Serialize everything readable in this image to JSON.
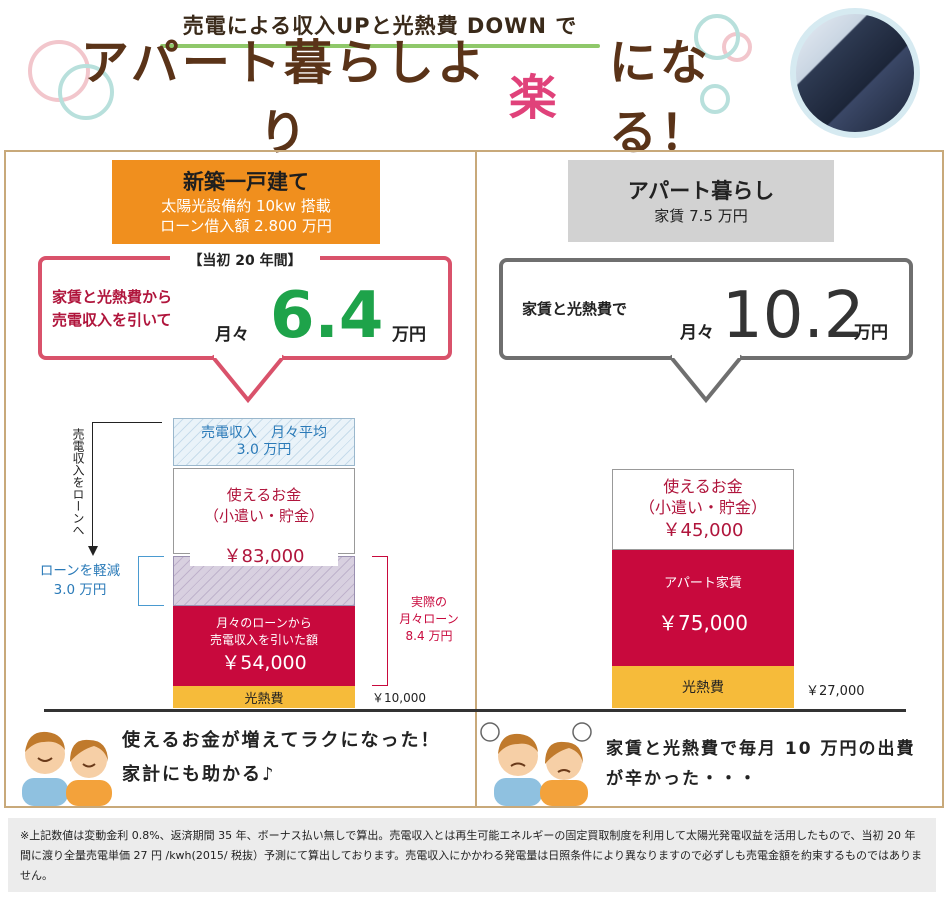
{
  "header": {
    "sub": "売電による収入UPと光熱費 DOWN で",
    "main_before": "アパート暮らしより",
    "main_highlight": "楽",
    "main_after": "になる！"
  },
  "left": {
    "title": "新築一戸建て",
    "spec1": "太陽光設備約 10kw 搭載",
    "spec2": "ローン借入額 2.800 万円",
    "period": "【当初 20 年間】",
    "desc1": "家賃と光熱費から",
    "desc2": "売電収入を引いて",
    "monthly": "月々",
    "amount": "6.4",
    "unit": "万円",
    "solar1": "売電収入　月々平均",
    "solar2": "3.0 万円",
    "usable1": "使えるお金",
    "usable2": "（小遣い・貯金）",
    "usable_amount": "￥83,000",
    "loan1": "月々のローンから",
    "loan2": "売電収入を引いた額",
    "loan_amount": "￥54,000",
    "utility": "光熱費",
    "utility_amount": "￥10,000",
    "arrow_text": "売電収入をローンへ",
    "reduce1": "ローンを軽減",
    "reduce2": "3.0 万円",
    "actual1": "実際の",
    "actual2": "月々ローン",
    "actual3": "8.4 万円",
    "message1": "使えるお金が増えてラクになった！",
    "message2": "家計にも助かる♪"
  },
  "right": {
    "title": "アパート暮らし",
    "spec": "家賃 7.5 万円",
    "desc": "家賃と光熱費で",
    "monthly": "月々",
    "amount": "10.2",
    "unit": "万円",
    "usable1": "使えるお金",
    "usable2": "（小遣い・貯金）",
    "usable_amount": "￥45,000",
    "rent_label": "アパート家賃",
    "rent_amount": "￥75,000",
    "utility": "光熱費",
    "utility_amount": "￥27,000",
    "message1": "家賃と光熱費で毎月 10 万円の出費",
    "message2": "が辛かった・・・"
  },
  "footnote": "※上記数値は変動金利 0.8%、返済期間 35 年、ボーナス払い無しで算出。売電収入とは再生可能エネルギーの固定買取制度を利用して太陽光発電収益を活用したもので、当初 20 年間に渡り全量売電単価 27 円 /kwh(2015/ 税抜）予測にて算出しております。売電収入にかかわる発電量は日照条件により異なりますので必ずしも売電金額を約束するものではありません。"
}
